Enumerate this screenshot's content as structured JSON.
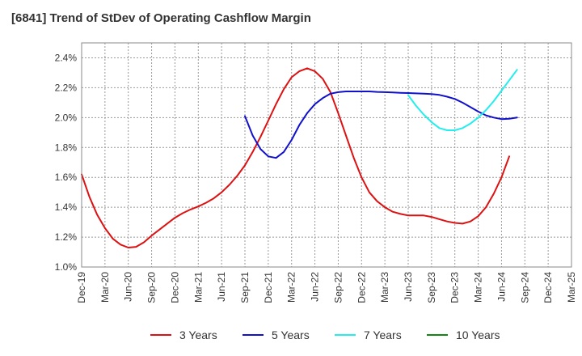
{
  "chart_data": {
    "type": "line",
    "title": "[6841]  Trend of StDev of Operating Cashflow Margin",
    "xlabel": "",
    "ylabel": "",
    "ylim": [
      1.0,
      2.5
    ],
    "yticks": [
      "1.0%",
      "1.2%",
      "1.4%",
      "1.6%",
      "1.8%",
      "2.0%",
      "2.2%",
      "2.4%"
    ],
    "xticks": [
      "Dec-19",
      "Mar-20",
      "Jun-20",
      "Sep-20",
      "Dec-20",
      "Mar-21",
      "Jun-21",
      "Sep-21",
      "Dec-21",
      "Mar-22",
      "Jun-22",
      "Sep-22",
      "Dec-22",
      "Mar-23",
      "Jun-23",
      "Sep-23",
      "Dec-23",
      "Mar-24",
      "Jun-24",
      "Sep-24",
      "Dec-24",
      "Mar-25"
    ],
    "grid": true,
    "legend_position": "bottom",
    "series": [
      {
        "name": "3 Years",
        "color": "#dd1111",
        "points": [
          [
            0,
            1.62
          ],
          [
            1,
            1.47
          ],
          [
            2,
            1.35
          ],
          [
            3,
            1.26
          ],
          [
            4,
            1.19
          ],
          [
            5,
            1.15
          ],
          [
            6,
            1.13
          ],
          [
            7,
            1.135
          ],
          [
            8,
            1.165
          ],
          [
            9,
            1.21
          ],
          [
            10,
            1.25
          ],
          [
            11,
            1.29
          ],
          [
            12,
            1.33
          ],
          [
            13,
            1.36
          ],
          [
            14,
            1.385
          ],
          [
            15,
            1.405
          ],
          [
            16,
            1.43
          ],
          [
            17,
            1.46
          ],
          [
            18,
            1.5
          ],
          [
            19,
            1.55
          ],
          [
            20,
            1.61
          ],
          [
            21,
            1.68
          ],
          [
            22,
            1.77
          ],
          [
            23,
            1.87
          ],
          [
            24,
            1.98
          ],
          [
            25,
            2.09
          ],
          [
            26,
            2.19
          ],
          [
            27,
            2.27
          ],
          [
            28,
            2.31
          ],
          [
            29,
            2.33
          ],
          [
            30,
            2.31
          ],
          [
            31,
            2.26
          ],
          [
            32,
            2.17
          ],
          [
            33,
            2.03
          ],
          [
            34,
            1.88
          ],
          [
            35,
            1.73
          ],
          [
            36,
            1.6
          ],
          [
            37,
            1.5
          ],
          [
            38,
            1.44
          ],
          [
            39,
            1.4
          ],
          [
            40,
            1.37
          ],
          [
            41,
            1.355
          ],
          [
            42,
            1.345
          ],
          [
            43,
            1.345
          ],
          [
            44,
            1.345
          ],
          [
            45,
            1.335
          ],
          [
            46,
            1.32
          ],
          [
            47,
            1.305
          ],
          [
            48,
            1.295
          ],
          [
            49,
            1.29
          ],
          [
            50,
            1.305
          ],
          [
            51,
            1.34
          ],
          [
            52,
            1.4
          ],
          [
            53,
            1.49
          ],
          [
            54,
            1.6
          ],
          [
            55,
            1.74
          ]
        ]
      },
      {
        "name": "5 Years",
        "color": "#1111cc",
        "points": [
          [
            21,
            2.01
          ],
          [
            22,
            1.88
          ],
          [
            23,
            1.79
          ],
          [
            24,
            1.74
          ],
          [
            25,
            1.73
          ],
          [
            26,
            1.77
          ],
          [
            27,
            1.85
          ],
          [
            28,
            1.95
          ],
          [
            29,
            2.03
          ],
          [
            30,
            2.09
          ],
          [
            31,
            2.13
          ],
          [
            32,
            2.16
          ],
          [
            33,
            2.17
          ],
          [
            34,
            2.175
          ],
          [
            35,
            2.175
          ],
          [
            36,
            2.175
          ],
          [
            37,
            2.175
          ],
          [
            38,
            2.172
          ],
          [
            39,
            2.17
          ],
          [
            40,
            2.168
          ],
          [
            41,
            2.166
          ],
          [
            42,
            2.164
          ],
          [
            43,
            2.162
          ],
          [
            44,
            2.16
          ],
          [
            45,
            2.157
          ],
          [
            46,
            2.152
          ],
          [
            47,
            2.14
          ],
          [
            48,
            2.125
          ],
          [
            49,
            2.1
          ],
          [
            50,
            2.07
          ],
          [
            51,
            2.04
          ],
          [
            52,
            2.015
          ],
          [
            53,
            2.0
          ],
          [
            54,
            1.99
          ],
          [
            55,
            1.992
          ],
          [
            56,
            2.0
          ]
        ]
      },
      {
        "name": "7 Years",
        "color": "#22eeee",
        "points": [
          [
            42,
            2.15
          ],
          [
            43,
            2.08
          ],
          [
            44,
            2.02
          ],
          [
            45,
            1.97
          ],
          [
            46,
            1.93
          ],
          [
            47,
            1.915
          ],
          [
            48,
            1.915
          ],
          [
            49,
            1.93
          ],
          [
            50,
            1.96
          ],
          [
            51,
            2.0
          ],
          [
            52,
            2.05
          ],
          [
            53,
            2.11
          ],
          [
            54,
            2.18
          ],
          [
            55,
            2.25
          ],
          [
            56,
            2.32
          ]
        ]
      },
      {
        "name": "10 Years",
        "color": "#118811",
        "points": []
      }
    ]
  }
}
